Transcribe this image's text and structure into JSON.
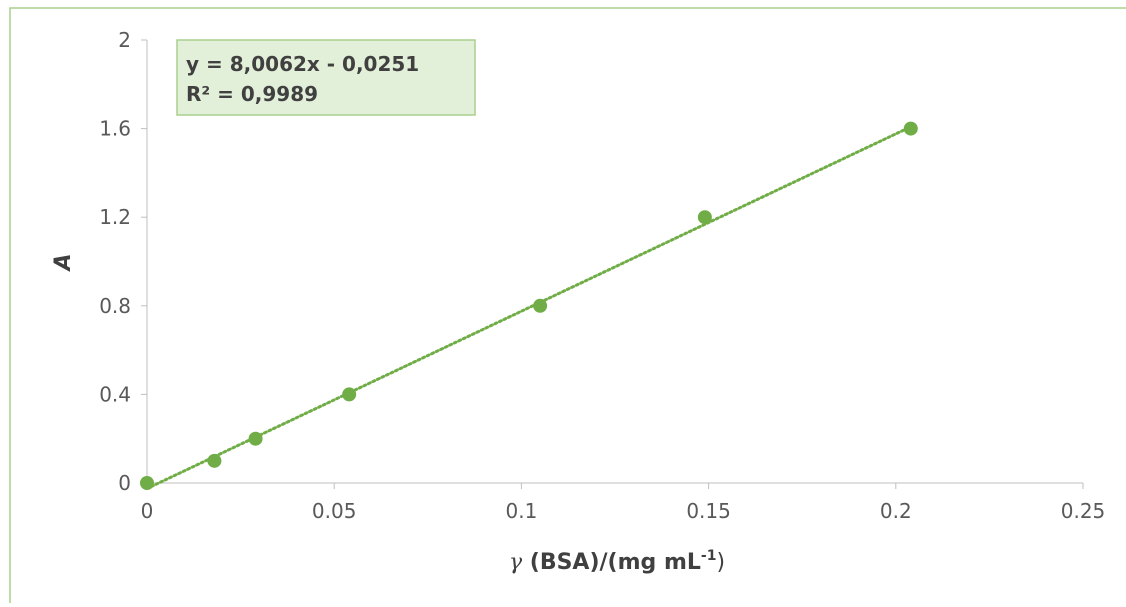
{
  "chart_data": {
    "type": "scatter",
    "title": "",
    "xlabel": {
      "symbol": "γ",
      "text": " (BSA)/(mg mL",
      "superscript": "-1",
      "closing": ")"
    },
    "ylabel": "A",
    "xlim": [
      0,
      0.25
    ],
    "ylim": [
      0,
      2
    ],
    "xticks": [
      0,
      0.05,
      0.1,
      0.15,
      0.2,
      0.25
    ],
    "xtick_labels": [
      "0",
      "0.05",
      "0.1",
      "0.15",
      "0.2",
      "0.25"
    ],
    "yticks": [
      0,
      0.4,
      0.8,
      1.2,
      1.6,
      2
    ],
    "ytick_labels": [
      "0",
      "0.4",
      "0.8",
      "1.2",
      "1.6",
      "2"
    ],
    "grid": false,
    "series": [
      {
        "x": [
          0,
          0.018,
          0.029,
          0.054,
          0.105,
          0.149,
          0.204
        ],
        "y": [
          0,
          0.1,
          0.2,
          0.4,
          0.8,
          1.2,
          1.6
        ]
      }
    ],
    "trendline": {
      "style": "dotted",
      "slope": 8.0062,
      "intercept": -0.0251,
      "equation_label": "y = 8,0062x - 0,0251",
      "r2_label": "R² = 0,9989"
    },
    "colors": {
      "marker": "#70ad47",
      "trendline": "#70ad47",
      "annotation_fill": "#e2efd9",
      "annotation_border": "#a9d08e",
      "frame_border": "#a9d08e",
      "axis": "#bfbfbf",
      "text": "#404040",
      "label_text": "#595959"
    }
  }
}
